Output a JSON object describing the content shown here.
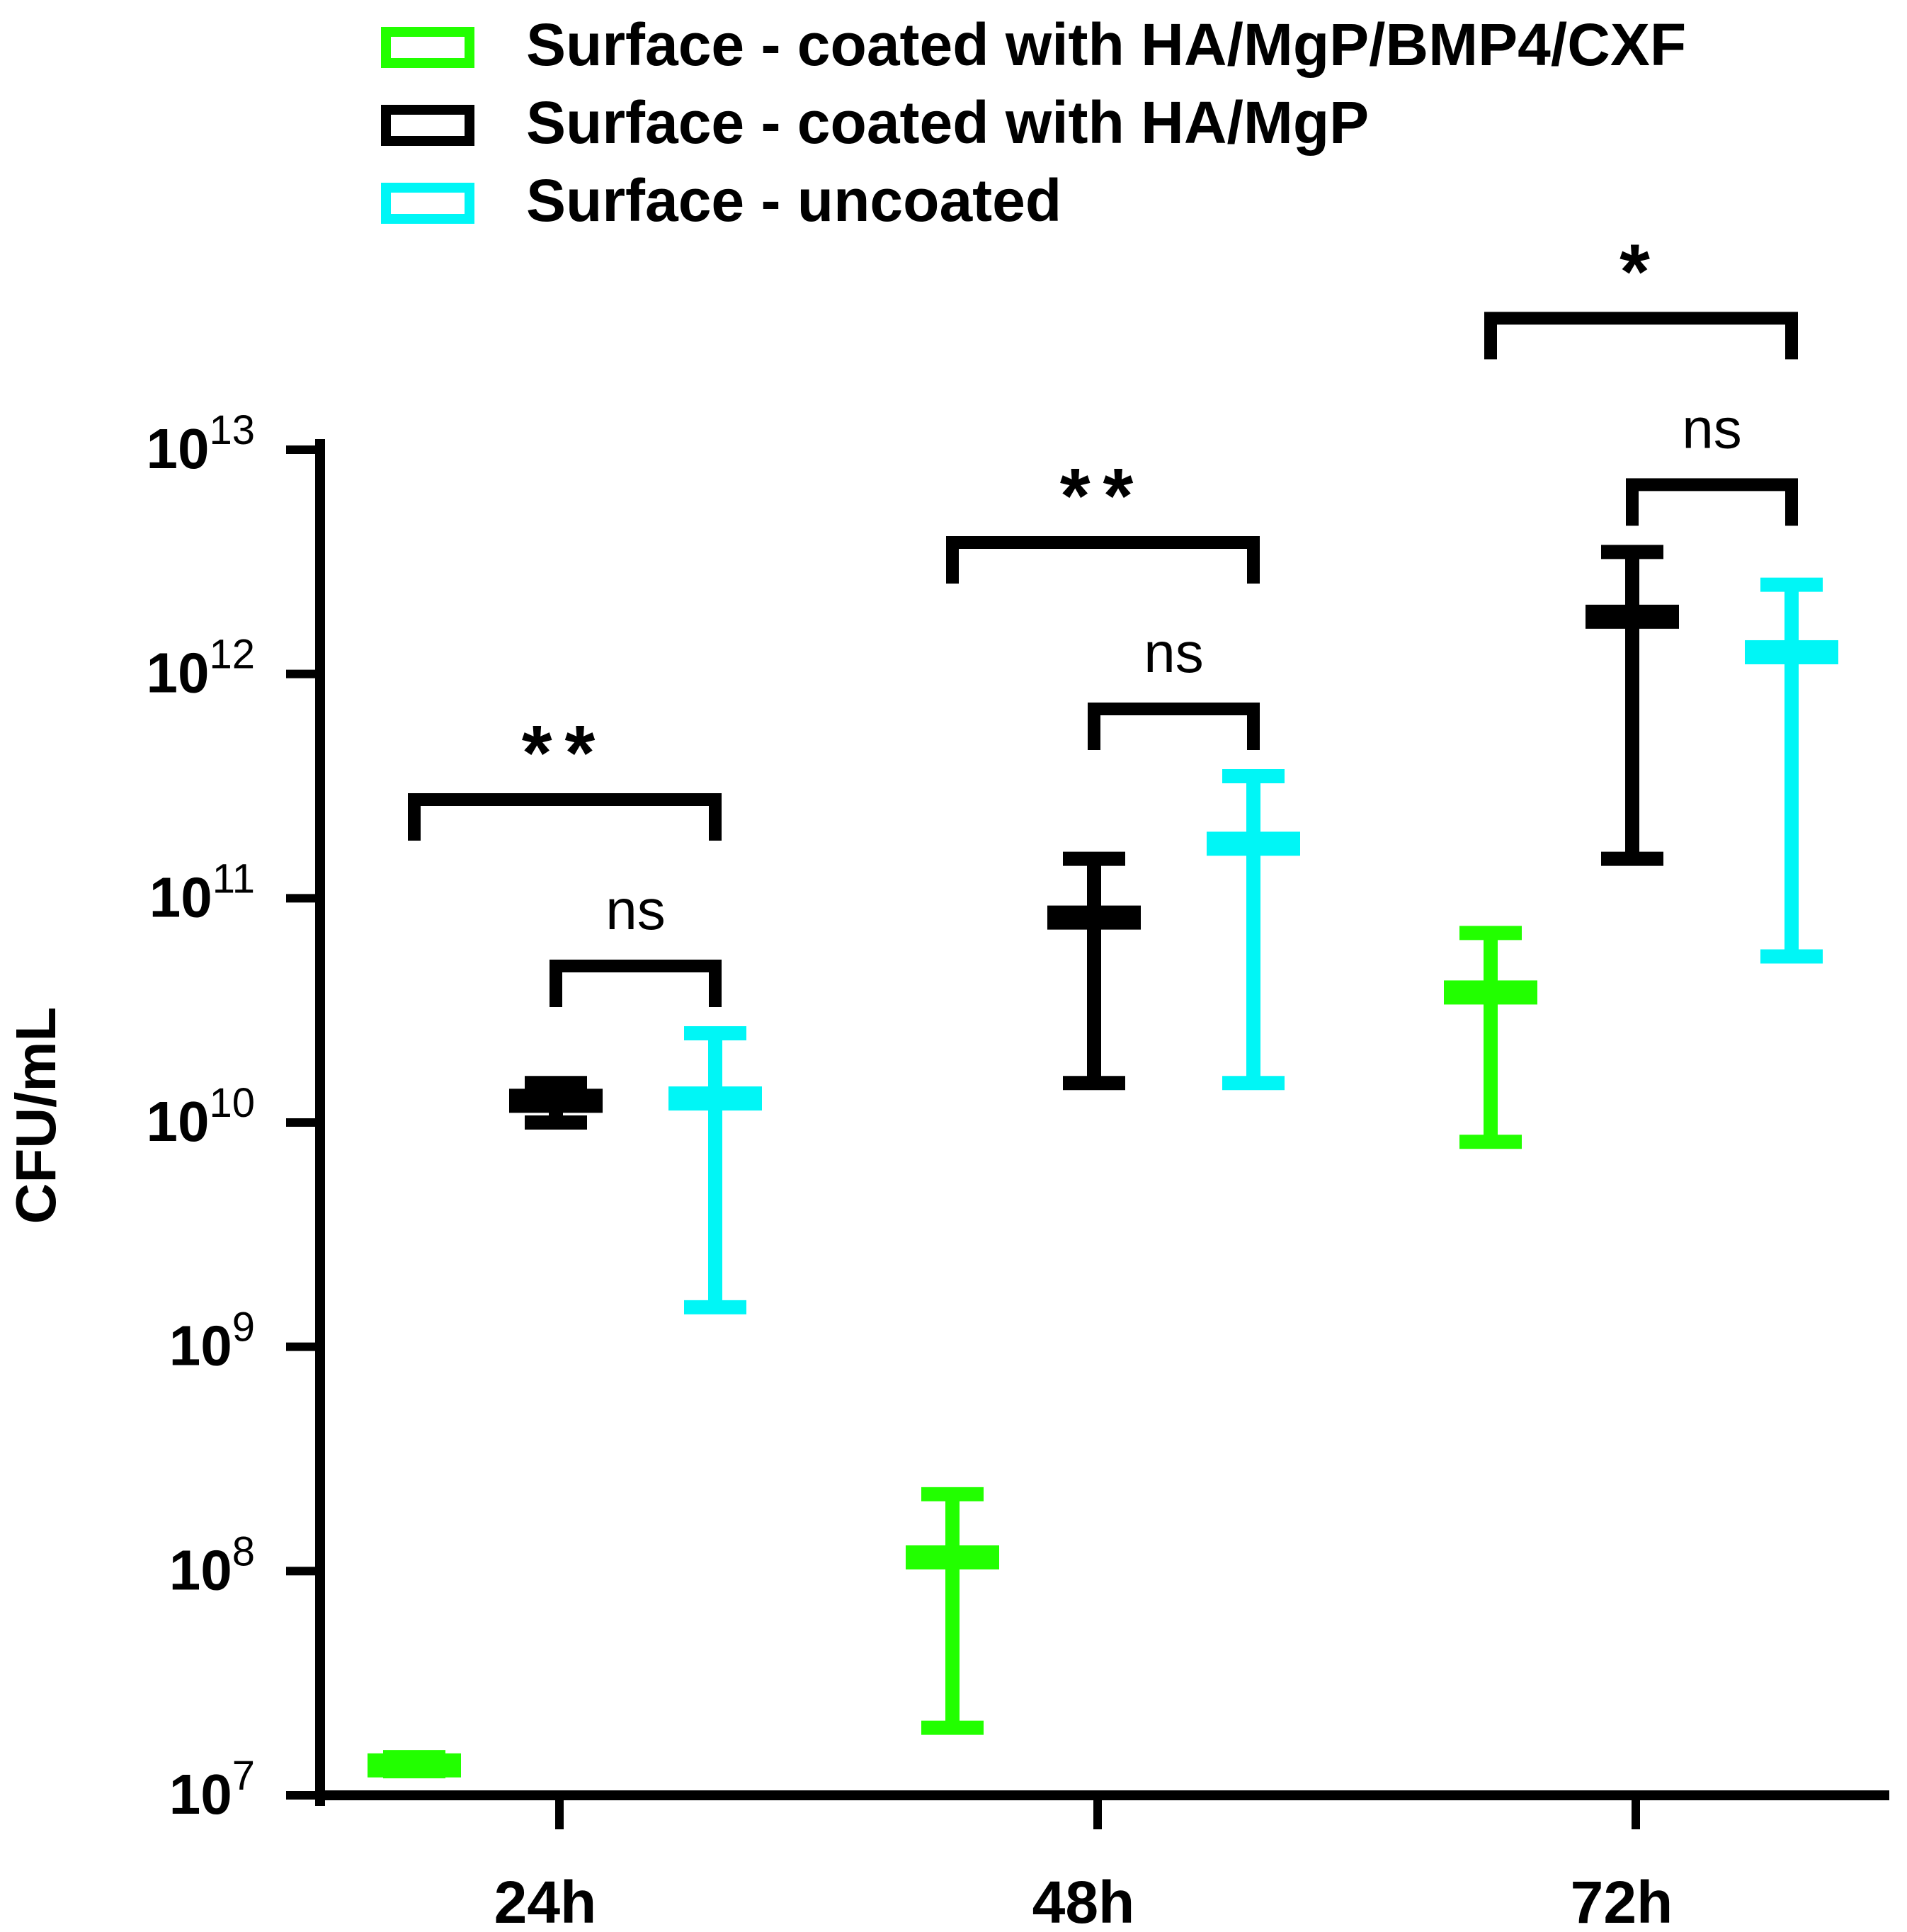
{
  "chart_data": {
    "type": "scatter",
    "subtype": "mean-with-range-error-bars",
    "title": "",
    "xlabel": "",
    "ylabel": "CFU/mL",
    "yscale": "log",
    "ylim": [
      10000000,
      10000000000000
    ],
    "y_ticks": [
      {
        "value": 10000000,
        "base": "10",
        "exp": "7"
      },
      {
        "value": 100000000,
        "base": "10",
        "exp": "8"
      },
      {
        "value": 1000000000,
        "base": "10",
        "exp": "9"
      },
      {
        "value": 10000000000,
        "base": "10",
        "exp": "10"
      },
      {
        "value": 100000000000,
        "base": "10",
        "exp": "11"
      },
      {
        "value": 1000000000000,
        "base": "10",
        "exp": "12"
      },
      {
        "value": 10000000000000,
        "base": "10",
        "exp": "13"
      }
    ],
    "categories": [
      "24h",
      "48h",
      "72h"
    ],
    "legend_position": "top",
    "series": [
      {
        "name": "Surface - coated with HA/MgP/BMP4/CXF",
        "color": "#22ff00",
        "points": [
          {
            "category": "24h",
            "mean": 13600000,
            "min": 12800000,
            "max": 14800000
          },
          {
            "category": "48h",
            "mean": 115000000,
            "min": 20000000,
            "max": 220000000
          },
          {
            "category": "72h",
            "mean": 38000000000,
            "min": 8200000000,
            "max": 70000000000
          }
        ]
      },
      {
        "name": "Surface - coated with HA/MgP",
        "color": "#000000",
        "points": [
          {
            "category": "24h",
            "mean": 12500000000,
            "min": 10000000000,
            "max": 15000000000
          },
          {
            "category": "48h",
            "mean": 82000000000,
            "min": 15000000000,
            "max": 150000000000
          },
          {
            "category": "72h",
            "mean": 1800000000000,
            "min": 150000000000,
            "max": 3500000000000
          }
        ]
      },
      {
        "name": "Surface - uncoated",
        "color": "#00f6f6",
        "points": [
          {
            "category": "24h",
            "mean": 12800000000,
            "min": 1500000000,
            "max": 25000000000
          },
          {
            "category": "48h",
            "mean": 175000000000,
            "min": 15000000000,
            "max": 350000000000
          },
          {
            "category": "72h",
            "mean": 1250000000000,
            "min": 55000000000,
            "max": 2500000000000
          }
        ]
      }
    ],
    "significance": [
      {
        "category": "24h",
        "from_series": 0,
        "to_series": 2,
        "label": "**",
        "level": 2
      },
      {
        "category": "24h",
        "from_series": 1,
        "to_series": 2,
        "label": "ns",
        "level": 1
      },
      {
        "category": "48h",
        "from_series": 0,
        "to_series": 2,
        "label": "**",
        "level": 2
      },
      {
        "category": "48h",
        "from_series": 1,
        "to_series": 2,
        "label": "ns",
        "level": 1
      },
      {
        "category": "72h",
        "from_series": 0,
        "to_series": 2,
        "label": "*",
        "level": 2
      },
      {
        "category": "72h",
        "from_series": 1,
        "to_series": 2,
        "label": "ns",
        "level": 1
      }
    ]
  }
}
